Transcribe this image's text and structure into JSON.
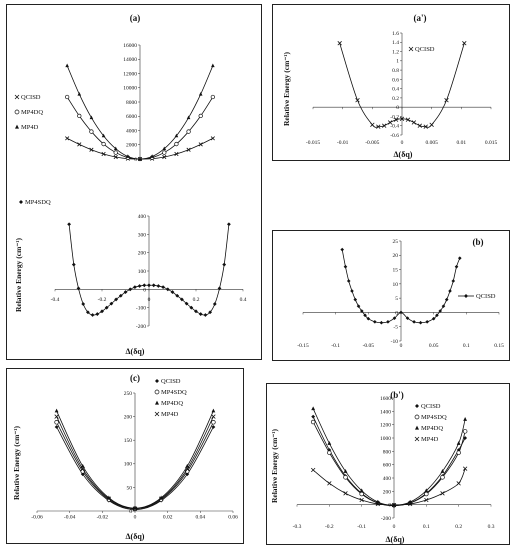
{
  "chart_data": [
    {
      "id": "a-top",
      "panel_label": "(a)",
      "type": "line",
      "title": "(a)",
      "xlabel": "",
      "ylabel": "",
      "xlim": [
        -0.35,
        0.35
      ],
      "ylim": [
        0,
        16000
      ],
      "yticks": [
        0,
        2000,
        4000,
        6000,
        8000,
        10000,
        12000,
        14000,
        16000
      ],
      "xticks": [],
      "legend_position": "left",
      "series": [
        {
          "name": "QCISD",
          "marker": "x",
          "x": [
            -0.3,
            -0.25,
            -0.2,
            -0.15,
            -0.1,
            -0.05,
            0,
            0.05,
            0.1,
            0.15,
            0.2,
            0.25,
            0.3
          ],
          "y": [
            2900,
            2050,
            1300,
            700,
            280,
            40,
            0,
            40,
            280,
            700,
            1300,
            2050,
            2900
          ]
        },
        {
          "name": "MP4DQ",
          "marker": "o",
          "x": [
            -0.3,
            -0.25,
            -0.2,
            -0.15,
            -0.1,
            -0.05,
            0,
            0.05,
            0.1,
            0.15,
            0.2,
            0.25,
            0.3
          ],
          "y": [
            8700,
            6050,
            3850,
            2100,
            900,
            200,
            0,
            200,
            900,
            2100,
            3850,
            6050,
            8700
          ]
        },
        {
          "name": "MP4D",
          "marker": "triangle",
          "x": [
            -0.3,
            -0.25,
            -0.2,
            -0.15,
            -0.1,
            -0.05,
            0,
            0.05,
            0.1,
            0.15,
            0.2,
            0.25,
            0.3
          ],
          "y": [
            13100,
            9100,
            5800,
            3250,
            1450,
            350,
            0,
            350,
            1450,
            3250,
            5800,
            9100,
            13100
          ]
        }
      ]
    },
    {
      "id": "a-bottom",
      "panel_label": "",
      "type": "line",
      "title": "",
      "xlabel": "Δ(δq)",
      "ylabel": "Relative Energy (cm⁻¹)",
      "xlim": [
        -0.4,
        0.4
      ],
      "ylim": [
        -200,
        400
      ],
      "yticks": [
        -200,
        -100,
        0,
        100,
        200,
        300,
        400
      ],
      "xticks": [
        -0.4,
        -0.2,
        0,
        0.2,
        0.4
      ],
      "legend_position": "top-left",
      "series": [
        {
          "name": "MP4SDQ",
          "marker": "diamond",
          "x": [
            -0.34,
            -0.32,
            -0.3,
            -0.28,
            -0.26,
            -0.24,
            -0.22,
            -0.2,
            -0.18,
            -0.16,
            -0.14,
            -0.12,
            -0.1,
            -0.08,
            -0.06,
            -0.04,
            -0.02,
            0,
            0.02,
            0.04,
            0.06,
            0.08,
            0.1,
            0.12,
            0.14,
            0.16,
            0.18,
            0.2,
            0.22,
            0.24,
            0.26,
            0.28,
            0.3,
            0.32,
            0.34
          ],
          "y": [
            355,
            135,
            5,
            -80,
            -125,
            -140,
            -135,
            -120,
            -100,
            -78,
            -55,
            -35,
            -15,
            0,
            12,
            18,
            22,
            22,
            22,
            18,
            12,
            0,
            -15,
            -35,
            -55,
            -78,
            -100,
            -120,
            -135,
            -140,
            -125,
            -80,
            5,
            135,
            355
          ]
        }
      ]
    },
    {
      "id": "a-prime",
      "panel_label": "(a')",
      "type": "line",
      "title": "(a')",
      "xlabel": "Δ(δq)",
      "ylabel": "Relative Energy (cm⁻¹)",
      "xlim": [
        -0.015,
        0.015
      ],
      "ylim": [
        -0.6,
        1.6
      ],
      "yticks": [
        -0.6,
        -0.4,
        -0.2,
        0,
        0.2,
        0.4,
        0.6,
        0.8,
        1,
        1.2,
        1.4,
        1.6
      ],
      "xticks": [
        -0.015,
        -0.01,
        -0.005,
        0,
        0.005,
        0.01,
        0.015
      ],
      "legend_position": "top-right",
      "series": [
        {
          "name": "QCISD",
          "marker": "x",
          "x": [
            -0.0105,
            -0.0075,
            -0.005,
            -0.004,
            -0.003,
            -0.002,
            -0.001,
            0,
            0.001,
            0.002,
            0.003,
            0.004,
            0.005,
            0.0075,
            0.0105
          ],
          "y": [
            1.38,
            0.15,
            -0.38,
            -0.42,
            -0.4,
            -0.33,
            -0.27,
            -0.25,
            -0.27,
            -0.33,
            -0.4,
            -0.42,
            -0.38,
            0.15,
            1.38
          ]
        }
      ]
    },
    {
      "id": "b",
      "panel_label": "(b)",
      "type": "line",
      "title": "(b)",
      "xlabel": "",
      "ylabel": "",
      "xlim": [
        -0.15,
        0.15
      ],
      "ylim": [
        -10,
        25
      ],
      "yticks": [
        -10,
        -5,
        0,
        5,
        10,
        15,
        20,
        25
      ],
      "xticks": [
        -0.15,
        -0.1,
        -0.05,
        0,
        0.05,
        0.1,
        0.15
      ],
      "legend_position": "right",
      "series": [
        {
          "name": "QCISD",
          "marker": "diamond",
          "x": [
            -0.09,
            -0.085,
            -0.08,
            -0.075,
            -0.07,
            -0.065,
            -0.06,
            -0.055,
            -0.05,
            -0.04,
            -0.03,
            -0.02,
            -0.01,
            0,
            0.01,
            0.02,
            0.03,
            0.04,
            0.05,
            0.055,
            0.06,
            0.065,
            0.07,
            0.075,
            0.08,
            0.085,
            0.09
          ],
          "y": [
            22,
            16,
            11,
            7.5,
            4.5,
            2.2,
            0.5,
            -1,
            -2.2,
            -3.3,
            -3.6,
            -3.3,
            -2,
            0,
            -2,
            -3.3,
            -3.6,
            -3.3,
            -2.2,
            -1,
            0.5,
            2.2,
            4.5,
            7.5,
            11,
            16,
            19
          ]
        }
      ]
    },
    {
      "id": "c",
      "panel_label": "(c)",
      "type": "line",
      "title": "(c)",
      "xlabel": "Δ(δq)",
      "ylabel": "Relative Energy (cm⁻¹)",
      "xlim": [
        -0.06,
        0.06
      ],
      "ylim": [
        0,
        250
      ],
      "yticks": [
        0,
        50,
        100,
        150,
        200,
        250
      ],
      "xticks": [
        -0.06,
        -0.04,
        -0.02,
        0,
        0.02,
        0.04,
        0.06
      ],
      "legend_position": "top-right",
      "series": [
        {
          "name": "QCISD",
          "marker": "diamond",
          "x": [
            -0.048,
            -0.032,
            -0.016,
            0,
            0.016,
            0.032,
            0.048
          ],
          "y": [
            178,
            78,
            22,
            3,
            22,
            78,
            178
          ]
        },
        {
          "name": "MP4SDQ",
          "marker": "o",
          "x": [
            -0.048,
            -0.032,
            -0.016,
            0,
            0.016,
            0.032,
            0.048
          ],
          "y": [
            188,
            84,
            24,
            5,
            24,
            84,
            188
          ]
        },
        {
          "name": "MP4DQ",
          "marker": "triangle",
          "x": [
            -0.048,
            -0.032,
            -0.016,
            0,
            0.016,
            0.032,
            0.048
          ],
          "y": [
            212,
            95,
            28,
            6,
            28,
            95,
            212
          ]
        },
        {
          "name": "MP4D",
          "marker": "x",
          "x": [
            -0.048,
            -0.032,
            -0.016,
            0,
            0.016,
            0.032,
            0.048
          ],
          "y": [
            200,
            89,
            26,
            5,
            26,
            89,
            200
          ]
        }
      ]
    },
    {
      "id": "b-prime",
      "panel_label": "(b')",
      "type": "line",
      "title": "(b')",
      "xlabel": "Δ(δq)",
      "ylabel": "Relative Energy (cm⁻¹)",
      "xlim": [
        -0.3,
        0.3
      ],
      "ylim": [
        -200,
        1600
      ],
      "yticks": [
        -200,
        0,
        200,
        400,
        600,
        800,
        1000,
        1200,
        1400,
        1600
      ],
      "xticks": [
        -0.3,
        -0.2,
        -0.1,
        0,
        0.1,
        0.2,
        0.3
      ],
      "legend_position": "top-right",
      "series": [
        {
          "name": "QCISD",
          "marker": "diamond",
          "x": [
            -0.25,
            -0.2,
            -0.15,
            -0.1,
            -0.05,
            0,
            0.05,
            0.1,
            0.15,
            0.2,
            0.22
          ],
          "y": [
            1320,
            820,
            430,
            170,
            25,
            -15,
            25,
            170,
            430,
            820,
            1000
          ]
        },
        {
          "name": "MP4SDQ",
          "marker": "o",
          "x": [
            -0.25,
            -0.2,
            -0.15,
            -0.1,
            -0.05,
            0,
            0.05,
            0.1,
            0.15,
            0.2,
            0.22
          ],
          "y": [
            1240,
            780,
            410,
            160,
            25,
            -10,
            25,
            160,
            410,
            780,
            1100
          ]
        },
        {
          "name": "MP4DQ",
          "marker": "triangle",
          "x": [
            -0.25,
            -0.2,
            -0.15,
            -0.1,
            -0.05,
            0,
            0.05,
            0.1,
            0.15,
            0.2,
            0.22
          ],
          "y": [
            1440,
            920,
            500,
            210,
            40,
            -10,
            40,
            210,
            500,
            920,
            1280
          ]
        },
        {
          "name": "MP4D",
          "marker": "x",
          "x": [
            -0.25,
            -0.2,
            -0.15,
            -0.1,
            -0.05,
            0,
            0.05,
            0.1,
            0.15,
            0.2,
            0.22
          ],
          "y": [
            520,
            320,
            170,
            70,
            10,
            -5,
            10,
            70,
            170,
            320,
            540
          ]
        }
      ]
    }
  ]
}
